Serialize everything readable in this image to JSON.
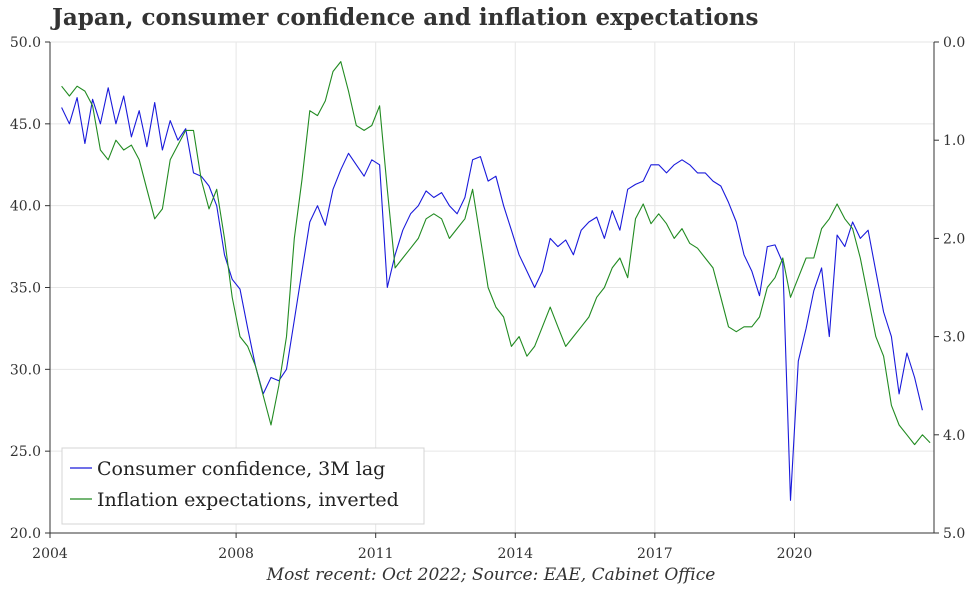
{
  "chart_data": {
    "type": "line",
    "title": "Japan, consumer confidence and inflation expectations",
    "caption": "Most recent: Oct 2022; Source: EAE, Cabinet Office",
    "x_ticks": [
      "2004",
      "2008",
      "2011",
      "2014",
      "2017",
      "2020"
    ],
    "x_range": [
      "2004-01",
      "2023-01"
    ],
    "y_left": {
      "lim": [
        20,
        50
      ],
      "ticks": [
        "20.0",
        "25.0",
        "30.0",
        "35.0",
        "40.0",
        "45.0",
        "50.0"
      ]
    },
    "y_right": {
      "lim": [
        0,
        5
      ],
      "inverted": true,
      "ticks": [
        "0.0",
        "1.0",
        "2.0",
        "3.0",
        "4.0",
        "5.0"
      ]
    },
    "grid": true,
    "legend_position": "bottom-left",
    "series": [
      {
        "name": "Consumer confidence, 3M lag",
        "color": "#1a1adb",
        "axis": "left",
        "points": [
          [
            "2004-04",
            46.0
          ],
          [
            "2004-06",
            45.0
          ],
          [
            "2004-08",
            46.6
          ],
          [
            "2004-10",
            43.8
          ],
          [
            "2004-12",
            46.5
          ],
          [
            "2005-02",
            45.0
          ],
          [
            "2005-04",
            47.2
          ],
          [
            "2005-06",
            45.0
          ],
          [
            "2005-08",
            46.7
          ],
          [
            "2005-10",
            44.2
          ],
          [
            "2005-12",
            45.8
          ],
          [
            "2006-02",
            43.6
          ],
          [
            "2006-04",
            46.3
          ],
          [
            "2006-06",
            43.4
          ],
          [
            "2006-08",
            45.2
          ],
          [
            "2006-10",
            44.0
          ],
          [
            "2006-12",
            44.7
          ],
          [
            "2007-02",
            42.0
          ],
          [
            "2007-04",
            41.8
          ],
          [
            "2007-06",
            41.2
          ],
          [
            "2007-08",
            40.0
          ],
          [
            "2007-10",
            37.0
          ],
          [
            "2007-12",
            35.5
          ],
          [
            "2008-02",
            34.9
          ],
          [
            "2008-04",
            32.5
          ],
          [
            "2008-06",
            30.2
          ],
          [
            "2008-08",
            28.5
          ],
          [
            "2008-10",
            29.5
          ],
          [
            "2008-12",
            29.3
          ],
          [
            "2009-02",
            30.0
          ],
          [
            "2009-04",
            33.0
          ],
          [
            "2009-06",
            36.0
          ],
          [
            "2009-08",
            39.0
          ],
          [
            "2009-10",
            40.0
          ],
          [
            "2009-12",
            38.8
          ],
          [
            "2010-02",
            41.0
          ],
          [
            "2010-04",
            42.2
          ],
          [
            "2010-06",
            43.2
          ],
          [
            "2010-08",
            42.5
          ],
          [
            "2010-10",
            41.8
          ],
          [
            "2010-12",
            42.8
          ],
          [
            "2011-02",
            42.5
          ],
          [
            "2011-04",
            35.0
          ],
          [
            "2011-06",
            37.0
          ],
          [
            "2011-08",
            38.5
          ],
          [
            "2011-10",
            39.5
          ],
          [
            "2011-12",
            40.0
          ],
          [
            "2012-02",
            40.9
          ],
          [
            "2012-04",
            40.5
          ],
          [
            "2012-06",
            40.8
          ],
          [
            "2012-08",
            40.0
          ],
          [
            "2012-10",
            39.5
          ],
          [
            "2012-12",
            40.5
          ],
          [
            "2013-02",
            42.8
          ],
          [
            "2013-04",
            43.0
          ],
          [
            "2013-06",
            41.5
          ],
          [
            "2013-08",
            41.8
          ],
          [
            "2013-10",
            40.0
          ],
          [
            "2013-12",
            38.5
          ],
          [
            "2014-02",
            37.0
          ],
          [
            "2014-04",
            36.0
          ],
          [
            "2014-06",
            35.0
          ],
          [
            "2014-08",
            36.0
          ],
          [
            "2014-10",
            38.0
          ],
          [
            "2014-12",
            37.5
          ],
          [
            "2015-02",
            37.9
          ],
          [
            "2015-04",
            37.0
          ],
          [
            "2015-06",
            38.5
          ],
          [
            "2015-08",
            39.0
          ],
          [
            "2015-10",
            39.3
          ],
          [
            "2015-12",
            38.0
          ],
          [
            "2016-02",
            39.7
          ],
          [
            "2016-04",
            38.5
          ],
          [
            "2016-06",
            41.0
          ],
          [
            "2016-08",
            41.3
          ],
          [
            "2016-10",
            41.5
          ],
          [
            "2016-12",
            42.5
          ],
          [
            "2017-02",
            42.5
          ],
          [
            "2017-04",
            42.0
          ],
          [
            "2017-06",
            42.5
          ],
          [
            "2017-08",
            42.8
          ],
          [
            "2017-10",
            42.5
          ],
          [
            "2017-12",
            42.0
          ],
          [
            "2018-02",
            42.0
          ],
          [
            "2018-04",
            41.5
          ],
          [
            "2018-06",
            41.2
          ],
          [
            "2018-08",
            40.2
          ],
          [
            "2018-10",
            39.0
          ],
          [
            "2018-12",
            37.0
          ],
          [
            "2019-02",
            36.0
          ],
          [
            "2019-04",
            34.5
          ],
          [
            "2019-06",
            37.5
          ],
          [
            "2019-08",
            37.6
          ],
          [
            "2019-10",
            36.5
          ],
          [
            "2019-12",
            22.0
          ],
          [
            "2020-02",
            30.5
          ],
          [
            "2020-04",
            32.5
          ],
          [
            "2020-06",
            34.8
          ],
          [
            "2020-08",
            36.2
          ],
          [
            "2020-10",
            32.0
          ],
          [
            "2020-12",
            38.2
          ],
          [
            "2021-02",
            37.5
          ],
          [
            "2021-04",
            39.0
          ],
          [
            "2021-06",
            38.0
          ],
          [
            "2021-08",
            38.5
          ],
          [
            "2021-10",
            36.0
          ],
          [
            "2021-12",
            33.5
          ],
          [
            "2022-02",
            32.0
          ],
          [
            "2022-04",
            28.5
          ],
          [
            "2022-06",
            31.0
          ],
          [
            "2022-08",
            29.5
          ],
          [
            "2022-10",
            27.5
          ]
        ]
      },
      {
        "name": "Inflation expectations, inverted",
        "color": "#228b22",
        "axis": "right",
        "points": [
          [
            "2004-04",
            0.45
          ],
          [
            "2004-06",
            0.55
          ],
          [
            "2004-08",
            0.45
          ],
          [
            "2004-10",
            0.5
          ],
          [
            "2004-12",
            0.65
          ],
          [
            "2005-02",
            1.1
          ],
          [
            "2005-04",
            1.2
          ],
          [
            "2005-06",
            1.0
          ],
          [
            "2005-08",
            1.1
          ],
          [
            "2005-10",
            1.05
          ],
          [
            "2005-12",
            1.2
          ],
          [
            "2006-02",
            1.5
          ],
          [
            "2006-04",
            1.8
          ],
          [
            "2006-06",
            1.7
          ],
          [
            "2006-08",
            1.2
          ],
          [
            "2006-10",
            1.05
          ],
          [
            "2006-12",
            0.9
          ],
          [
            "2007-02",
            0.9
          ],
          [
            "2007-04",
            1.4
          ],
          [
            "2007-06",
            1.7
          ],
          [
            "2007-08",
            1.5
          ],
          [
            "2007-10",
            2.0
          ],
          [
            "2007-12",
            2.6
          ],
          [
            "2008-02",
            3.0
          ],
          [
            "2008-04",
            3.1
          ],
          [
            "2008-06",
            3.3
          ],
          [
            "2008-08",
            3.6
          ],
          [
            "2008-10",
            3.9
          ],
          [
            "2008-12",
            3.5
          ],
          [
            "2009-02",
            3.0
          ],
          [
            "2009-04",
            2.0
          ],
          [
            "2009-06",
            1.4
          ],
          [
            "2009-08",
            0.7
          ],
          [
            "2009-10",
            0.75
          ],
          [
            "2009-12",
            0.6
          ],
          [
            "2010-02",
            0.3
          ],
          [
            "2010-04",
            0.2
          ],
          [
            "2010-06",
            0.5
          ],
          [
            "2010-08",
            0.85
          ],
          [
            "2010-10",
            0.9
          ],
          [
            "2010-12",
            0.85
          ],
          [
            "2011-02",
            0.65
          ],
          [
            "2011-04",
            1.5
          ],
          [
            "2011-06",
            2.3
          ],
          [
            "2011-08",
            2.2
          ],
          [
            "2011-10",
            2.1
          ],
          [
            "2011-12",
            2.0
          ],
          [
            "2012-02",
            1.8
          ],
          [
            "2012-04",
            1.75
          ],
          [
            "2012-06",
            1.8
          ],
          [
            "2012-08",
            2.0
          ],
          [
            "2012-10",
            1.9
          ],
          [
            "2012-12",
            1.8
          ],
          [
            "2013-02",
            1.5
          ],
          [
            "2013-04",
            2.0
          ],
          [
            "2013-06",
            2.5
          ],
          [
            "2013-08",
            2.7
          ],
          [
            "2013-10",
            2.8
          ],
          [
            "2013-12",
            3.1
          ],
          [
            "2014-02",
            3.0
          ],
          [
            "2014-04",
            3.2
          ],
          [
            "2014-06",
            3.1
          ],
          [
            "2014-08",
            2.9
          ],
          [
            "2014-10",
            2.7
          ],
          [
            "2014-12",
            2.9
          ],
          [
            "2015-02",
            3.1
          ],
          [
            "2015-04",
            3.0
          ],
          [
            "2015-06",
            2.9
          ],
          [
            "2015-08",
            2.8
          ],
          [
            "2015-10",
            2.6
          ],
          [
            "2015-12",
            2.5
          ],
          [
            "2016-02",
            2.3
          ],
          [
            "2016-04",
            2.2
          ],
          [
            "2016-06",
            2.4
          ],
          [
            "2016-08",
            1.8
          ],
          [
            "2016-10",
            1.65
          ],
          [
            "2016-12",
            1.85
          ],
          [
            "2017-02",
            1.75
          ],
          [
            "2017-04",
            1.85
          ],
          [
            "2017-06",
            2.0
          ],
          [
            "2017-08",
            1.9
          ],
          [
            "2017-10",
            2.05
          ],
          [
            "2017-12",
            2.1
          ],
          [
            "2018-02",
            2.2
          ],
          [
            "2018-04",
            2.3
          ],
          [
            "2018-06",
            2.6
          ],
          [
            "2018-08",
            2.9
          ],
          [
            "2018-10",
            2.95
          ],
          [
            "2018-12",
            2.9
          ],
          [
            "2019-02",
            2.9
          ],
          [
            "2019-04",
            2.8
          ],
          [
            "2019-06",
            2.5
          ],
          [
            "2019-08",
            2.4
          ],
          [
            "2019-10",
            2.2
          ],
          [
            "2019-12",
            2.6
          ],
          [
            "2020-02",
            2.4
          ],
          [
            "2020-04",
            2.2
          ],
          [
            "2020-06",
            2.2
          ],
          [
            "2020-08",
            1.9
          ],
          [
            "2020-10",
            1.8
          ],
          [
            "2020-12",
            1.65
          ],
          [
            "2021-02",
            1.8
          ],
          [
            "2021-04",
            1.9
          ],
          [
            "2021-06",
            2.2
          ],
          [
            "2021-08",
            2.6
          ],
          [
            "2021-10",
            3.0
          ],
          [
            "2021-12",
            3.2
          ],
          [
            "2022-02",
            3.7
          ],
          [
            "2022-04",
            3.9
          ],
          [
            "2022-06",
            4.0
          ],
          [
            "2022-08",
            4.1
          ],
          [
            "2022-10",
            4.0
          ],
          [
            "2022-12",
            4.08
          ]
        ]
      }
    ]
  }
}
